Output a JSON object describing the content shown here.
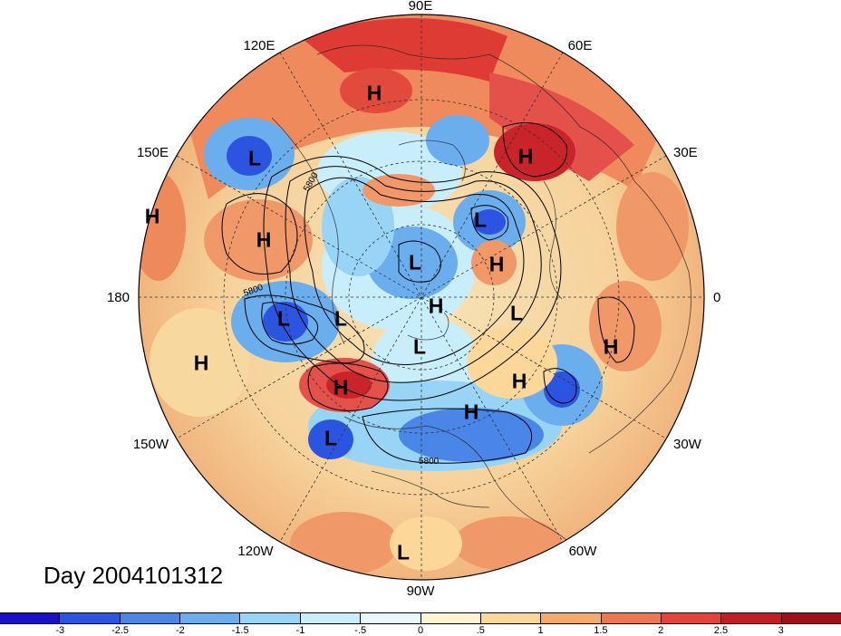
{
  "longitude_labels": {
    "lon_90e": "90E",
    "lon_60e": "60E",
    "lon_120e": "120E",
    "lon_30e": "30E",
    "lon_150e": "150E",
    "lon_0": "0",
    "lon_180": "180",
    "lon_30w": "30W",
    "lon_150w": "150W",
    "lon_60w": "60W",
    "lon_120w": "120W",
    "lon_90w": "90W"
  },
  "pressure_centers": {
    "symbols": [
      "H",
      "L",
      "H",
      "H",
      "H",
      "L",
      "H",
      "L",
      "H",
      "L",
      "L",
      "H",
      "L",
      "L",
      "H",
      "H",
      "H",
      "L",
      "H",
      "L"
    ]
  },
  "contour_labels": [
    "5800",
    "5800",
    "5800"
  ],
  "timestamp": "Day 2004101312",
  "colorbar": {
    "ticks": [
      "-3",
      "-2.5",
      "-2",
      "-1.5",
      "-1",
      "-.5",
      "0",
      ".5",
      "1",
      "1.5",
      "2",
      "2.5",
      "3"
    ],
    "colors": [
      "#1a10c8",
      "#2b55e0",
      "#4a85e8",
      "#6aaeee",
      "#97d4f5",
      "#c8eefb",
      "#e8f8fd",
      "#fdf4d0",
      "#fbd79a",
      "#f5a96a",
      "#ee7650",
      "#e5423c",
      "#c01e22",
      "#a01018"
    ]
  }
}
